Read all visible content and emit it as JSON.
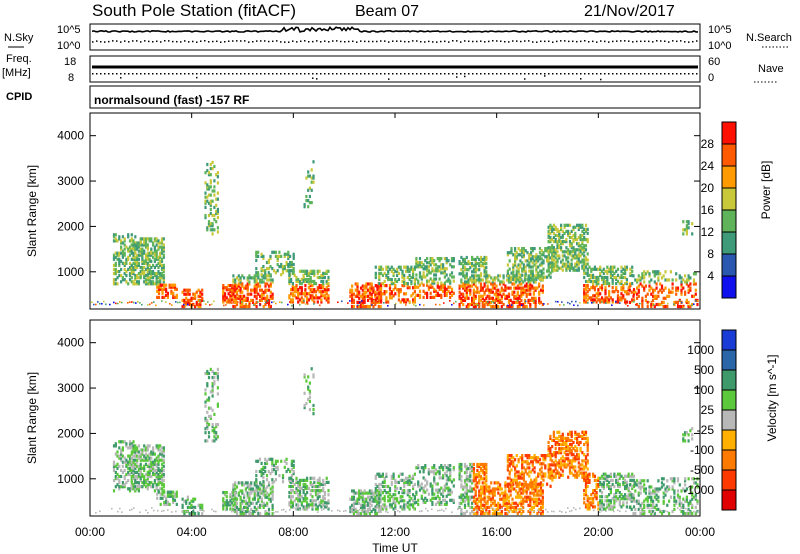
{
  "header": {
    "station": "South Pole Station (fitACF)",
    "beam": "Beam 07",
    "date": "21/Nov/2017"
  },
  "noise_panel": {
    "left_label": "N.Sky",
    "left_ticks": [
      "10^5",
      "10^0"
    ],
    "right_ticks": [
      "10^5",
      "10^0"
    ],
    "right_label": "N.Search"
  },
  "freq_panel": {
    "left_label_1": "Freq.",
    "left_label_2": "[MHz]",
    "left_ticks": [
      "18",
      "8"
    ],
    "right_ticks": [
      "60",
      "0"
    ],
    "right_label": "Nave"
  },
  "cpid": {
    "label": "CPID",
    "mode": "normalsound (fast) -157 RF"
  },
  "chart_data": [
    {
      "type": "heatmap",
      "quantity": "Power",
      "xlabel": "Time UT",
      "ylabel": "Slant Range [km]",
      "y_ticks": [
        "1000",
        "2000",
        "3000",
        "4000"
      ],
      "colorbar_label": "Power [dB]",
      "colorbar_ticks": [
        "4",
        "8",
        "12",
        "16",
        "20",
        "24",
        "28"
      ],
      "colorbar_colors": [
        "#1010ee",
        "#2a58b0",
        "#3e9a78",
        "#5fb45a",
        "#c8c83a",
        "#ff9a00",
        "#ff5a00",
        "#ff1000"
      ],
      "xlim": [
        0,
        24
      ],
      "ylim": [
        180,
        4500
      ]
    },
    {
      "type": "heatmap",
      "quantity": "Velocity",
      "xlabel": "Time UT",
      "ylabel": "Slant Range [km]",
      "y_ticks": [
        "1000",
        "2000",
        "3000",
        "4000"
      ],
      "colorbar_label": "Velocity [m s^-1]",
      "colorbar_ticks": [
        "1000",
        "500",
        "100",
        "25",
        "-25",
        "-100",
        "-500",
        "-1000"
      ],
      "colorbar_colors": [
        "#1a3cd6",
        "#2a66a8",
        "#3e9a6a",
        "#5cc83c",
        "#b8b8b8",
        "#ffb000",
        "#ff7a00",
        "#ff3a00",
        "#e00000"
      ],
      "xlim": [
        0,
        24
      ],
      "ylim": [
        180,
        4500
      ]
    }
  ],
  "x_axis": {
    "ticks": [
      "00:00",
      "04:00",
      "08:00",
      "12:00",
      "16:00",
      "20:00",
      "00:00"
    ],
    "label": "Time UT"
  }
}
